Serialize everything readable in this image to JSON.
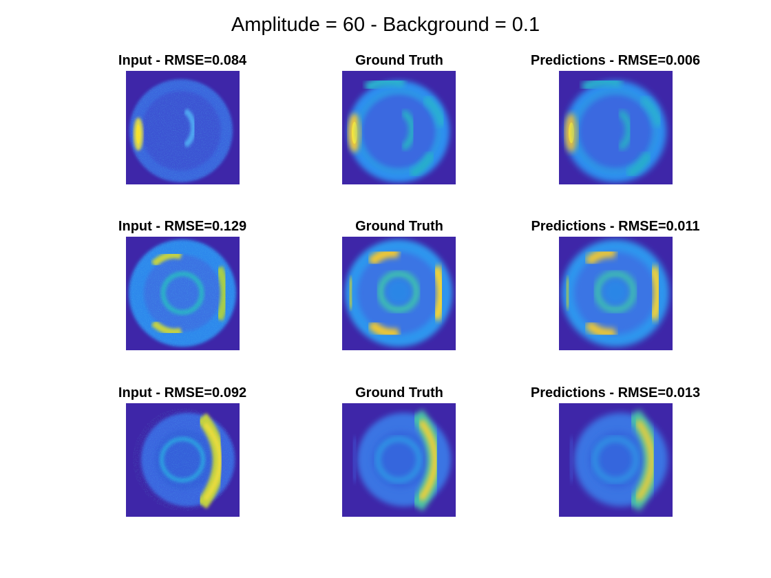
{
  "figure": {
    "title": "Amplitude = 60 - Background = 0.1"
  },
  "rows": [
    {
      "input_title": "Input - RMSE=0.084",
      "truth_title": "Ground Truth",
      "pred_title": "Predictions - RMSE=0.006"
    },
    {
      "input_title": "Input - RMSE=0.129",
      "truth_title": "Ground Truth",
      "pred_title": "Predictions - RMSE=0.011"
    },
    {
      "input_title": "Input - RMSE=0.092",
      "truth_title": "Ground Truth",
      "pred_title": "Predictions - RMSE=0.013"
    }
  ],
  "colors": {
    "background_dark": "#3e26a8",
    "disk_blue": "#2c7ee8",
    "mid_cyan": "#20b5c9",
    "green": "#7dcb5d",
    "yellow": "#f9e22a"
  }
}
